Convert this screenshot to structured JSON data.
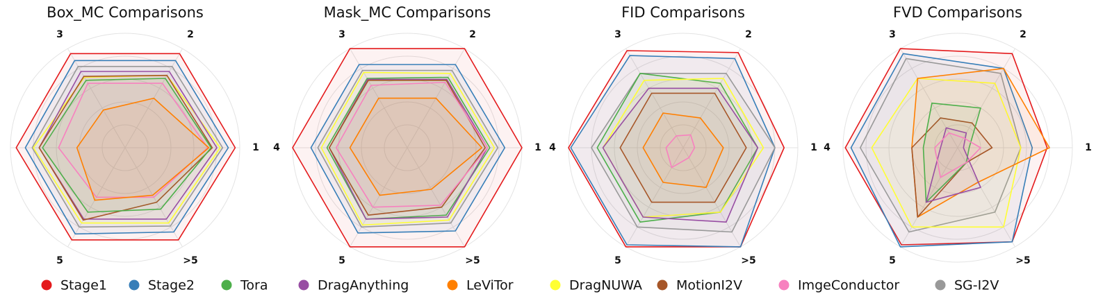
{
  "chart_data": {
    "type": "radar",
    "axes": [
      "1",
      "2",
      "3",
      "4",
      "5",
      ">5"
    ],
    "series_names": [
      "Stage1",
      "Stage2",
      "Tora",
      "DragAnything",
      "LeViTor",
      "DragNUWA",
      "MotionI2V",
      "ImgeConductor",
      "SG-I2V"
    ],
    "colors": {
      "Stage1": "#e41a1c",
      "Stage2": "#377eb8",
      "Tora": "#4daf4a",
      "DragAnything": "#984ea3",
      "LeViTor": "#ff7f00",
      "DragNUWA": "#ffff33",
      "MotionI2V": "#a65628",
      "ImgeConductor": "#f781bf",
      "SG-I2V": "#999999"
    },
    "legend_position": "bottom",
    "panels": [
      {
        "title": "Box_MC Comparisons",
        "series": [
          {
            "name": "Stage1",
            "values": [
              0.96,
              0.95,
              0.95,
              0.95,
              0.93,
              0.93
            ]
          },
          {
            "name": "Stage2",
            "values": [
              0.9,
              0.88,
              0.88,
              0.87,
              0.87,
              0.85
            ]
          },
          {
            "name": "Tora",
            "values": [
              0.75,
              0.7,
              0.68,
              0.72,
              0.65,
              0.62
            ]
          },
          {
            "name": "DragAnything",
            "values": [
              0.8,
              0.77,
              0.77,
              0.75,
              0.72,
              0.72
            ]
          },
          {
            "name": "LeViTor",
            "values": [
              0.73,
              0.5,
              0.38,
              0.42,
              0.53,
              0.48
            ]
          },
          {
            "name": "DragNUWA",
            "values": [
              0.83,
              0.73,
              0.71,
              0.8,
              0.76,
              0.76
            ]
          },
          {
            "name": "MotionI2V",
            "values": [
              0.76,
              0.73,
              0.72,
              0.75,
              0.73,
              0.55
            ]
          },
          {
            "name": "ImgeConductor",
            "values": [
              0.72,
              0.65,
              0.65,
              0.58,
              0.5,
              0.5
            ]
          },
          {
            "name": "SG-I2V",
            "values": [
              0.85,
              0.82,
              0.82,
              0.81,
              0.8,
              0.79
            ]
          }
        ]
      },
      {
        "title": "Mask_MC Comparisons",
        "series": [
          {
            "name": "Stage1",
            "values": [
              1.0,
              1.0,
              1.0,
              1.0,
              1.0,
              1.0
            ]
          },
          {
            "name": "Stage2",
            "values": [
              0.85,
              0.84,
              0.84,
              0.84,
              0.86,
              0.84
            ]
          },
          {
            "name": "Tora",
            "values": [
              0.72,
              0.71,
              0.7,
              0.7,
              0.72,
              0.68
            ]
          },
          {
            "name": "DragAnything",
            "values": [
              0.7,
              0.69,
              0.69,
              0.68,
              0.72,
              0.7
            ]
          },
          {
            "name": "LeViTor",
            "values": [
              0.65,
              0.5,
              0.5,
              0.5,
              0.48,
              0.42
            ]
          },
          {
            "name": "DragNUWA",
            "values": [
              0.76,
              0.75,
              0.76,
              0.75,
              0.78,
              0.73
            ]
          },
          {
            "name": "MotionI2V",
            "values": [
              0.68,
              0.68,
              0.68,
              0.68,
              0.68,
              0.6
            ]
          },
          {
            "name": "ImgeConductor",
            "values": [
              0.7,
              0.66,
              0.63,
              0.62,
              0.6,
              0.58
            ]
          },
          {
            "name": "SG-I2V",
            "values": [
              0.79,
              0.78,
              0.78,
              0.78,
              0.8,
              0.76
            ]
          }
        ]
      },
      {
        "title": "FID Comparisons",
        "series": [
          {
            "name": "Stage1",
            "values": [
              0.88,
              0.96,
              0.98,
              1.0,
              1.0,
              1.0
            ]
          },
          {
            "name": "Stage2",
            "values": [
              0.8,
              0.9,
              0.93,
              0.98,
              0.98,
              1.0
            ]
          },
          {
            "name": "Tora",
            "values": [
              0.65,
              0.65,
              0.75,
              0.75,
              0.75,
              0.65
            ]
          },
          {
            "name": "DragAnything",
            "values": [
              0.65,
              0.6,
              0.6,
              0.7,
              0.7,
              0.75
            ]
          },
          {
            "name": "LeViTor",
            "values": [
              0.35,
              0.3,
              0.35,
              0.35,
              0.35,
              0.4
            ]
          },
          {
            "name": "DragNUWA",
            "values": [
              0.7,
              0.7,
              0.68,
              0.7,
              0.7,
              0.65
            ]
          },
          {
            "name": "MotionI2V",
            "values": [
              0.55,
              0.55,
              0.55,
              0.55,
              0.55,
              0.55
            ]
          },
          {
            "name": "ImgeConductor",
            "values": [
              0.1,
              0.13,
              0.12,
              0.15,
              0.2,
              0.1
            ]
          },
          {
            "name": "SG-I2V",
            "values": [
              0.8,
              0.75,
              0.75,
              0.8,
              0.8,
              0.85
            ]
          }
        ]
      },
      {
        "title": "FVD Comparisons",
        "series": [
          {
            "name": "Stage1",
            "values": [
              0.78,
              0.95,
              1.0,
              0.98,
              0.98,
              0.95
            ]
          },
          {
            "name": "Stage2",
            "values": [
              0.65,
              0.8,
              0.95,
              0.93,
              1.0,
              0.95
            ]
          },
          {
            "name": "Tora",
            "values": [
              0.1,
              0.4,
              0.45,
              0.3,
              0.55,
              0.15
            ]
          },
          {
            "name": "DragAnything",
            "values": [
              0.05,
              0.15,
              0.2,
              0.15,
              0.55,
              0.4
            ]
          },
          {
            "name": "LeViTor",
            "values": [
              0.8,
              0.8,
              0.7,
              0.4,
              0.7,
              0.35
            ]
          },
          {
            "name": "DragNUWA",
            "values": [
              0.55,
              0.65,
              0.7,
              0.75,
              0.8,
              0.8
            ]
          },
          {
            "name": "MotionI2V",
            "values": [
              0.3,
              0.25,
              0.3,
              0.4,
              0.7,
              0.15
            ]
          },
          {
            "name": "ImgeConductor",
            "values": [
              0.2,
              0.1,
              0.15,
              0.2,
              0.3,
              0.15
            ]
          },
          {
            "name": "SG-I2V",
            "values": [
              0.55,
              0.75,
              0.9,
              0.85,
              0.85,
              0.65
            ]
          }
        ]
      }
    ]
  }
}
